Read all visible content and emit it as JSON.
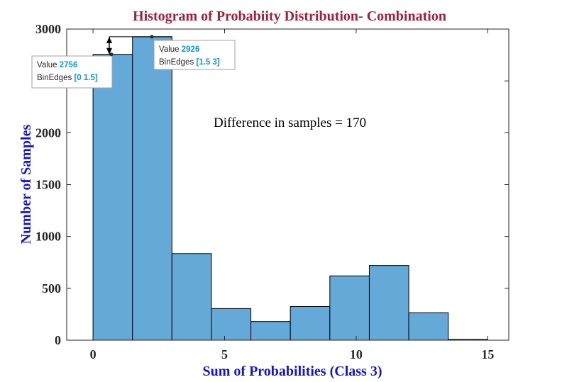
{
  "chart_data": {
    "type": "bar",
    "title": "Histogram of Probabiity Distribution- Combination",
    "xlabel": "Sum of Probabilities (Class 3)",
    "ylabel": "Number of Samples",
    "xlim": [
      -1,
      15.8
    ],
    "ylim": [
      0,
      3000
    ],
    "xticks": [
      0,
      5,
      10,
      15
    ],
    "yticks": [
      0,
      500,
      1000,
      1500,
      2000,
      2500,
      3000
    ],
    "bin_edges": [
      0,
      1.5,
      3,
      4.5,
      6,
      7.5,
      9,
      10.5,
      12,
      13.5,
      15
    ],
    "values": [
      2756,
      2926,
      835,
      305,
      180,
      325,
      620,
      720,
      265,
      8
    ],
    "grid": false,
    "annotation": "Difference in samples = 170",
    "datatips": [
      {
        "value_label": "Value",
        "value": "2756",
        "edges_label": "BinEdges",
        "edges": "[0 1.5]",
        "x": 0.75,
        "y": 2756
      },
      {
        "value_label": "Value",
        "value": "2926",
        "edges_label": "BinEdges",
        "edges": "[1.5 3]",
        "x": 2.25,
        "y": 2926
      }
    ]
  },
  "colors": {
    "bar_fill": "#64A9D8",
    "bar_edge": "#000000",
    "title": "#A0213A",
    "axis_label": "#1414D6",
    "tick": "#262626",
    "tip_value": "#1493DB"
  }
}
